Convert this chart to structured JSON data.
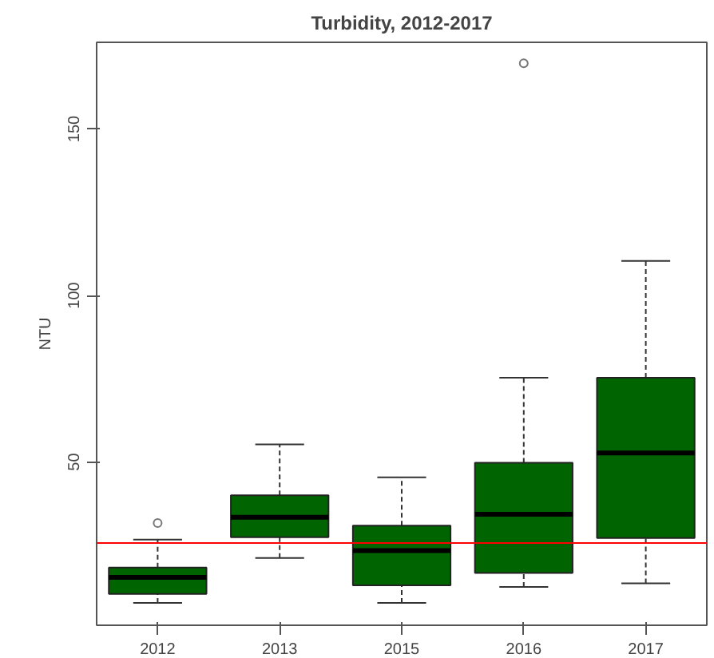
{
  "chart_data": {
    "type": "box",
    "title": "Turbidity, 2012-2017",
    "ylabel": "NTU",
    "categories": [
      "2012",
      "2013",
      "2015",
      "2016",
      "2017"
    ],
    "series": [
      {
        "color": "#006400",
        "boxes": [
          {
            "low": 7.7,
            "q1": 10.4,
            "median": 15.4,
            "q3": 18.3,
            "high": 26.7,
            "outliers": [
              31.7
            ]
          },
          {
            "low": 21.2,
            "q1": 27.4,
            "median": 33.4,
            "q3": 40,
            "high": 55.3
          },
          {
            "low": 7.7,
            "q1": 13,
            "median": 23.4,
            "q3": 30.9,
            "high": 45.4
          },
          {
            "low": 12.5,
            "q1": 16.7,
            "median": 34.3,
            "q3": 49.8,
            "high": 75.3,
            "outliers": [
              169.7
            ]
          },
          {
            "low": 13.6,
            "q1": 27.2,
            "median": 52.7,
            "q3": 75.3,
            "high": 110.4
          }
        ]
      }
    ],
    "ylim": [
      1,
      176
    ],
    "yticks": [
      50,
      100,
      150
    ],
    "grid": false,
    "ref_lines": [
      {
        "axis": "y",
        "value": 25.7,
        "label": null,
        "color": "#ff0000"
      }
    ]
  }
}
